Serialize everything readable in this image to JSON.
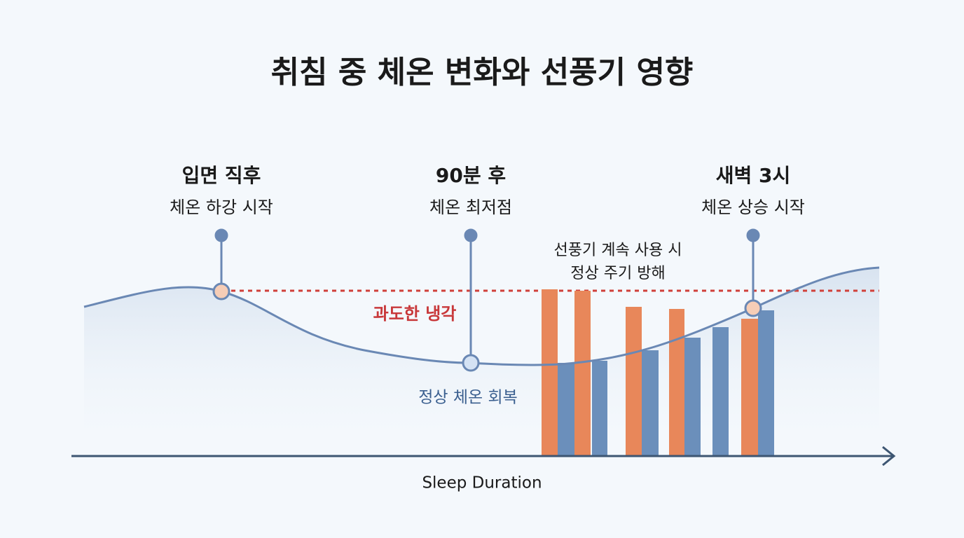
{
  "title": "취침 중 체온 변화와 선풍기 영향",
  "annotations": [
    {
      "heading": "입면 직후",
      "text": "체온 하강 시작"
    },
    {
      "heading": "90분 후",
      "text": "체온 최저점"
    },
    {
      "heading": "새벽 3시",
      "text": "체온 상승 시작"
    }
  ],
  "fan_note": [
    "선풍기 계속 사용 시",
    "정상 주기 방해"
  ],
  "overcooling_label": "과도한 냉각",
  "recovery_label": "정상 체온 회복",
  "x_axis_label": "Sleep Duration"
}
